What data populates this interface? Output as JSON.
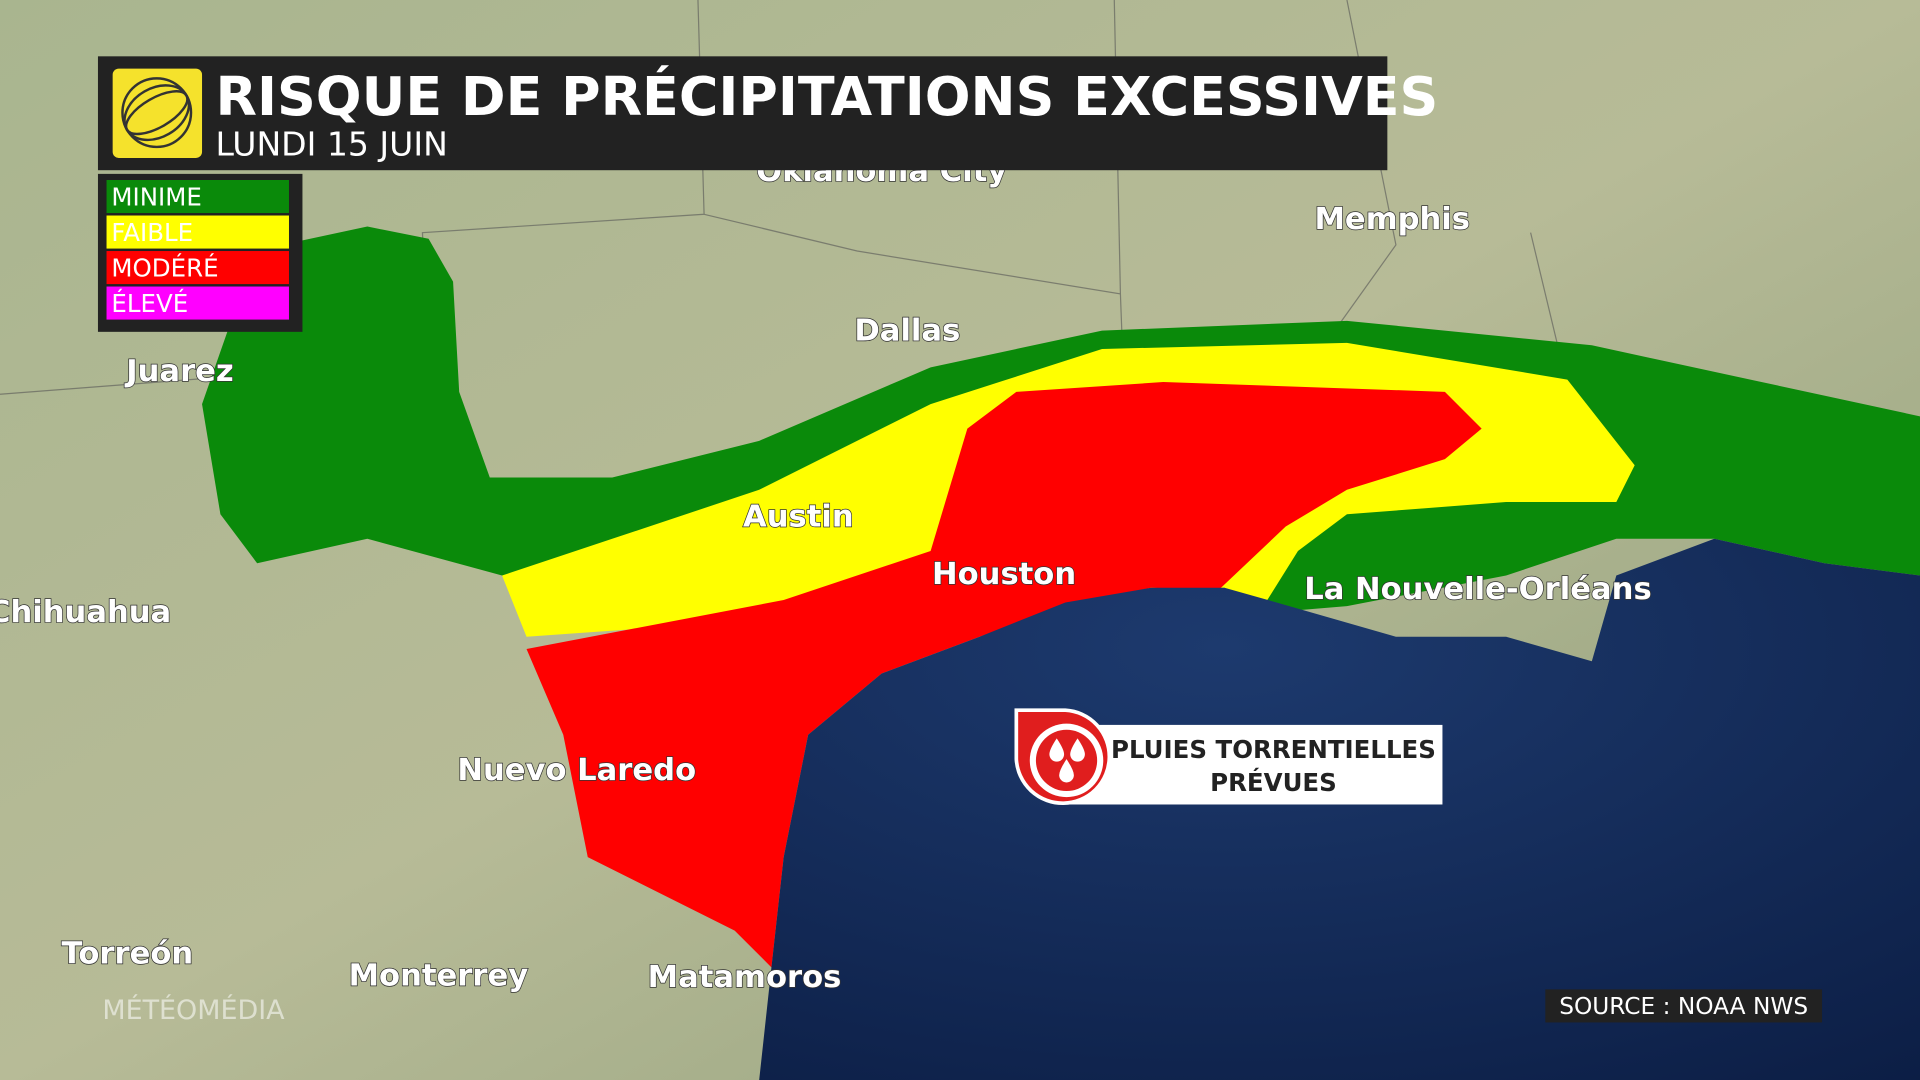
{
  "header": {
    "title": "RISQUE DE PRÉCIPITATIONS EXCESSIVES",
    "subtitle": "LUNDI 15 JUIN"
  },
  "legend": [
    {
      "label": "MINIME",
      "color": "#0a8a0a"
    },
    {
      "label": "FAIBLE",
      "color": "#ffff00"
    },
    {
      "label": "MODÉRÉ",
      "color": "#ff0000"
    },
    {
      "label": "ÉLEVÉ",
      "color": "#ff00ff"
    }
  ],
  "cities": [
    "Oklahoma City",
    "Memphis",
    "Dallas",
    "Juarez",
    "Austin",
    "Houston",
    "Chihuahua",
    "La Nouvelle-Orléans",
    "Nuevo Laredo",
    "Torreón",
    "Monterrey",
    "Matamoros"
  ],
  "callout": {
    "lines": [
      "PLUIES TORRENTIELLES",
      "PRÉVUES"
    ]
  },
  "source": "SOURCE : NOAA NWS",
  "watermark": "MÉTÉOMÉDIA"
}
